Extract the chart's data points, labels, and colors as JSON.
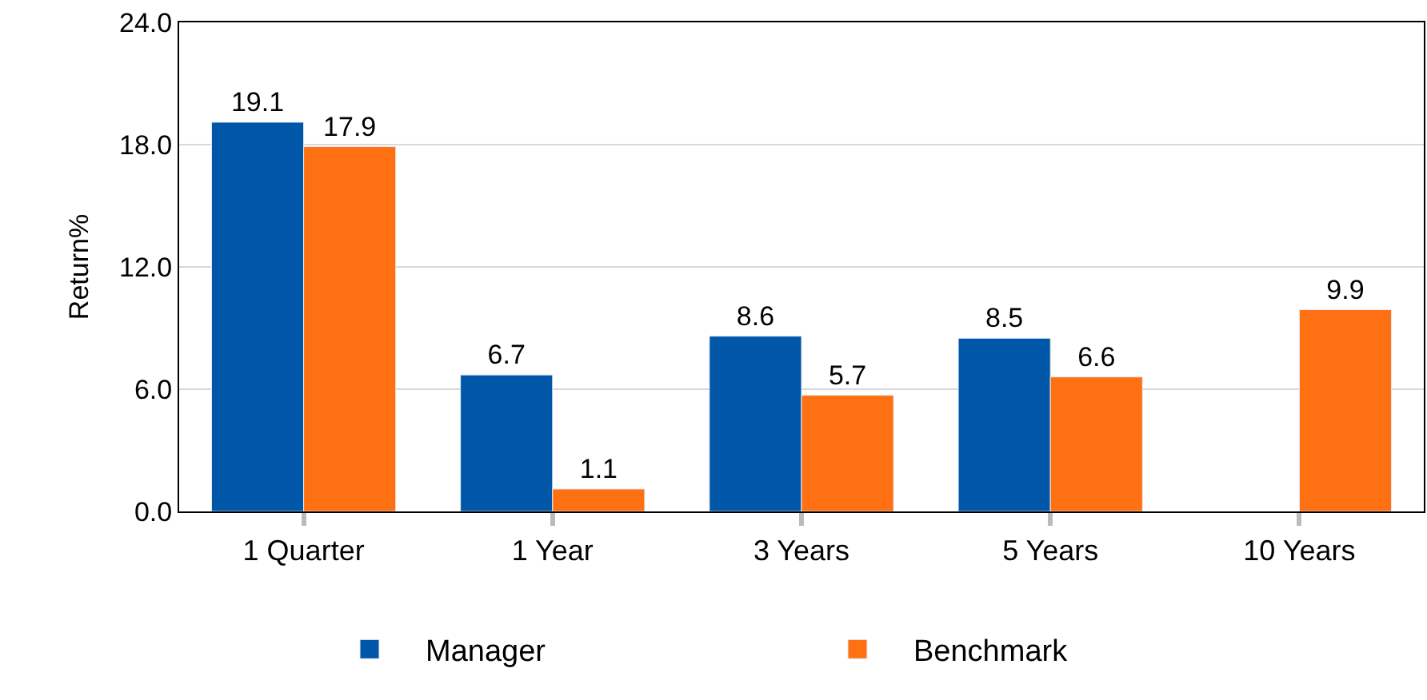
{
  "chart_data": {
    "type": "bar",
    "ylabel": "Return%",
    "categories": [
      "1 Quarter",
      "1 Year",
      "3 Years",
      "5 Years",
      "10 Years"
    ],
    "series": [
      {
        "name": "Manager",
        "color": "#0057a8",
        "values": [
          19.1,
          6.7,
          8.6,
          8.5,
          null
        ]
      },
      {
        "name": "Benchmark",
        "color": "#ff7013",
        "values": [
          17.9,
          1.1,
          5.7,
          6.6,
          9.9
        ]
      }
    ],
    "ylim": [
      0,
      24
    ],
    "yticks": [
      {
        "value": 0,
        "label": "0.0"
      },
      {
        "value": 6,
        "label": "6.0"
      },
      {
        "value": 12,
        "label": "12.0"
      },
      {
        "value": 18,
        "label": "18.0"
      },
      {
        "value": 24,
        "label": "24.0"
      }
    ],
    "grid": "y",
    "legend": "bottom",
    "data_labels": true
  }
}
